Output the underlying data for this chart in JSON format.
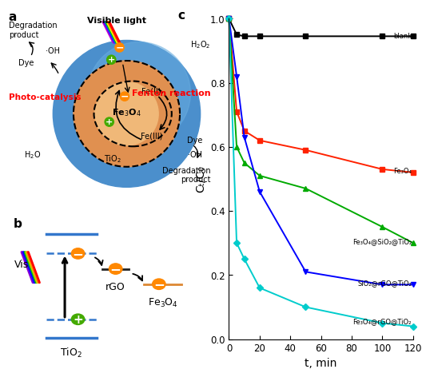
{
  "panel_c": {
    "xlabel": "t, min",
    "ylabel": "Cₜ/C₀",
    "xlim": [
      0,
      120
    ],
    "ylim": [
      0,
      1.0
    ],
    "yticks": [
      0.0,
      0.2,
      0.4,
      0.6,
      0.8,
      1.0
    ],
    "xticks": [
      0,
      20,
      40,
      60,
      80,
      100,
      120
    ],
    "series": [
      {
        "label": "blank",
        "color": "#000000",
        "marker": "s",
        "x": [
          0,
          5,
          10,
          20,
          50,
          100,
          120
        ],
        "y": [
          1.0,
          0.95,
          0.945,
          0.945,
          0.945,
          0.945,
          0.945
        ]
      },
      {
        "label": "Fe₃O₄",
        "color": "#ff2200",
        "marker": "s",
        "x": [
          0,
          5,
          10,
          20,
          50,
          100,
          120
        ],
        "y": [
          1.0,
          0.71,
          0.65,
          0.62,
          0.59,
          0.53,
          0.52
        ]
      },
      {
        "label": "Fe₃O₄@SiO₂@TiO₂",
        "color": "#00aa00",
        "marker": "^",
        "x": [
          0,
          5,
          10,
          20,
          50,
          100,
          120
        ],
        "y": [
          1.0,
          0.6,
          0.55,
          0.51,
          0.47,
          0.35,
          0.3
        ]
      },
      {
        "label": "SiO₂@rGO@TiO₂",
        "color": "#0000ff",
        "marker": "v",
        "x": [
          0,
          5,
          10,
          20,
          50,
          100,
          120
        ],
        "y": [
          1.0,
          0.82,
          0.63,
          0.46,
          0.21,
          0.17,
          0.17
        ]
      },
      {
        "label": "Fe₃O₄@rGO@TiO₂",
        "color": "#00cccc",
        "marker": "D",
        "x": [
          0,
          5,
          10,
          20,
          50,
          100,
          120
        ],
        "y": [
          1.0,
          0.3,
          0.25,
          0.16,
          0.1,
          0.05,
          0.04
        ]
      }
    ],
    "inline_labels": {
      "blank": [
        0.945,
        "blank"
      ],
      "Fe₃O₄": [
        0.52,
        "Fe₃O₄"
      ],
      "Fe₃O₄@SiO₂@TiO₂": [
        0.3,
        "Fe₃O₄@SiO₂@TiO₂"
      ],
      "SiO₂@rGO@TiO₂": [
        0.17,
        "SiO₂@rGO@TiO₂"
      ],
      "Fe₃O₄@rGO@TiO₂": [
        0.04,
        "Fe₃O₄@rGO@TiO₂"
      ]
    }
  }
}
